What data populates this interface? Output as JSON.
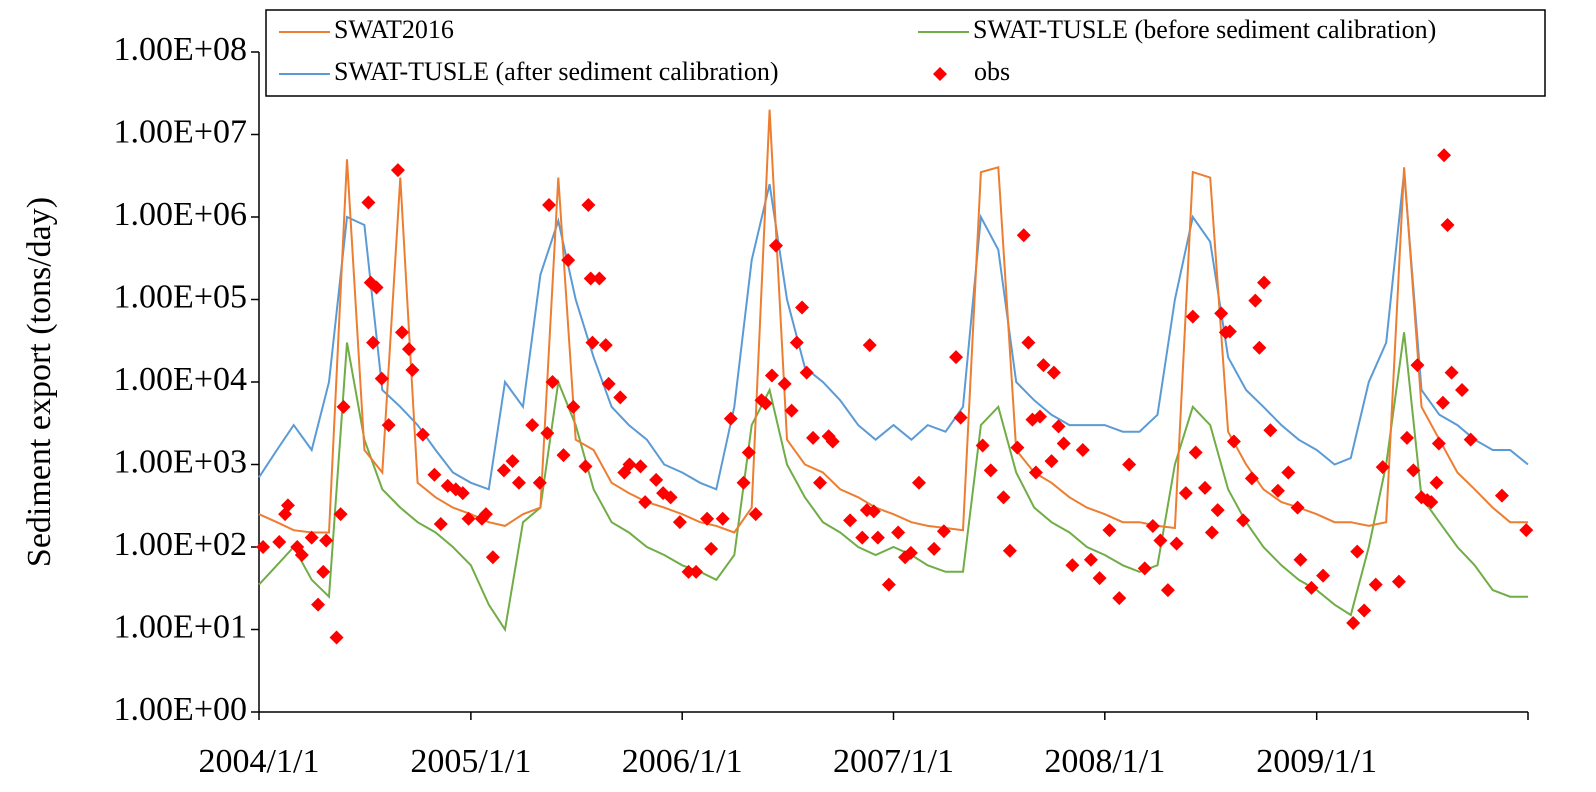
{
  "chart_data": {
    "type": "line",
    "y_label": "Sediment export (tons/day)",
    "log_y": true,
    "grid": false,
    "legend": "top",
    "x": [
      "2004/1/1",
      "2004/2/1",
      "2004/3/1",
      "2004/4/1",
      "2004/5/1",
      "2004/6/1",
      "2004/7/1",
      "2004/8/1",
      "2004/9/1",
      "2004/10/1",
      "2004/11/1",
      "2004/12/1",
      "2005/1/1",
      "2005/2/1",
      "2005/3/1",
      "2005/4/1",
      "2005/5/1",
      "2005/6/1",
      "2005/7/1",
      "2005/8/1",
      "2005/9/1",
      "2005/10/1",
      "2005/11/1",
      "2005/12/1",
      "2006/1/1",
      "2006/2/1",
      "2006/3/1",
      "2006/4/1",
      "2006/5/1",
      "2006/6/1",
      "2006/7/1",
      "2006/8/1",
      "2006/9/1",
      "2006/10/1",
      "2006/11/1",
      "2006/12/1",
      "2007/1/1",
      "2007/2/1",
      "2007/3/1",
      "2007/4/1",
      "2007/5/1",
      "2007/6/1",
      "2007/7/1",
      "2007/8/1",
      "2007/9/1",
      "2007/10/1",
      "2007/11/1",
      "2007/12/1",
      "2008/1/1",
      "2008/2/1",
      "2008/3/1",
      "2008/4/1",
      "2008/5/1",
      "2008/6/1",
      "2008/7/1",
      "2008/8/1",
      "2008/9/1",
      "2008/10/1",
      "2008/11/1",
      "2008/12/1",
      "2009/1/1",
      "2009/2/1",
      "2009/3/1",
      "2009/4/1",
      "2009/5/1",
      "2009/6/1",
      "2009/7/1",
      "2009/8/1",
      "2009/9/1",
      "2009/10/1",
      "2009/11/1",
      "2009/12/1",
      "2010/1/1"
    ],
    "xlim": [
      "2004/1/1",
      "2010/1/1"
    ],
    "xticks": [
      "2004/1/1",
      "2005/1/1",
      "2006/1/1",
      "2007/1/1",
      "2008/1/1",
      "2009/1/1"
    ],
    "ylim": [
      1,
      100000000
    ],
    "yticks": [
      {
        "value": 1,
        "label": "1.00E+00"
      },
      {
        "value": 10,
        "label": "1.00E+01"
      },
      {
        "value": 100,
        "label": "1.00E+02"
      },
      {
        "value": 1000,
        "label": "1.00E+03"
      },
      {
        "value": 10000,
        "label": "1.00E+04"
      },
      {
        "value": 100000,
        "label": "1.00E+05"
      },
      {
        "value": 1000000,
        "label": "1.00E+06"
      },
      {
        "value": 10000000,
        "label": "1.00E+07"
      },
      {
        "value": 100000000,
        "label": "1.00E+08"
      }
    ],
    "series": [
      {
        "name": "SWAT2016",
        "color": "#ed7d31",
        "style": "line",
        "values": [
          250,
          200,
          160,
          150,
          150,
          5000000,
          1500,
          800,
          3000000,
          600,
          400,
          300,
          250,
          200,
          180,
          250,
          300,
          3000000,
          2000,
          1500,
          600,
          450,
          350,
          300,
          250,
          200,
          180,
          150,
          300,
          20000000,
          2000,
          1000,
          800,
          500,
          400,
          300,
          250,
          200,
          180,
          170,
          160,
          3500000,
          4000000,
          1500,
          800,
          600,
          400,
          300,
          250,
          200,
          200,
          180,
          170,
          3500000,
          3000000,
          2500,
          1000,
          500,
          350,
          300,
          250,
          200,
          200,
          180,
          200,
          4000000,
          5000,
          2000,
          800,
          500,
          300,
          200,
          200
        ]
      },
      {
        "name": "SWAT-TUSLE (before sediment calibration)",
        "color": "#70ad47",
        "style": "line",
        "values": [
          35,
          60,
          100,
          40,
          25,
          30000,
          2000,
          500,
          300,
          200,
          150,
          100,
          60,
          20,
          10,
          200,
          300,
          10000,
          3000,
          500,
          200,
          150,
          100,
          80,
          60,
          50,
          40,
          80,
          3000,
          8000,
          1000,
          400,
          200,
          150,
          100,
          80,
          100,
          80,
          60,
          50,
          50,
          3000,
          5000,
          800,
          300,
          200,
          150,
          100,
          80,
          60,
          50,
          60,
          1000,
          5000,
          3000,
          500,
          200,
          100,
          60,
          40,
          30,
          20,
          15,
          100,
          1000,
          40000,
          400,
          200,
          100,
          60,
          30,
          25,
          25
        ]
      },
      {
        "name": "SWAT-TUSLE (after sediment calibration)",
        "color": "#5b9bd5",
        "style": "line",
        "values": [
          700,
          1500,
          3000,
          1500,
          10000,
          1000000,
          800000,
          8000,
          5000,
          3000,
          1500,
          800,
          600,
          500,
          10000,
          5000,
          200000,
          900000,
          100000,
          20000,
          5000,
          3000,
          2000,
          1000,
          800,
          600,
          500,
          5000,
          300000,
          2500000,
          100000,
          15000,
          10000,
          6000,
          3000,
          2000,
          3000,
          2000,
          3000,
          2500,
          5000,
          1000000,
          400000,
          10000,
          6000,
          4000,
          3000,
          3000,
          3000,
          2500,
          2500,
          4000,
          100000,
          1000000,
          500000,
          20000,
          8000,
          5000,
          3000,
          2000,
          1500,
          1000,
          1200,
          10000,
          30000,
          3500000,
          8000,
          4000,
          3000,
          2000,
          1500,
          1500,
          1000
        ]
      },
      {
        "name": "obs",
        "color": "#ff0000",
        "style": "marker",
        "x": [
          "2004/1/8",
          "2004/2/5",
          "2004/2/15",
          "2004/2/20",
          "2004/3/7",
          "2004/3/15",
          "2004/4/1",
          "2004/4/12",
          "2004/4/21",
          "2004/4/26",
          "2004/5/14",
          "2004/5/21",
          "2004/5/26",
          "2004/7/8",
          "2004/7/12",
          "2004/7/16",
          "2004/7/22",
          "2004/7/31",
          "2004/8/12",
          "2004/8/28",
          "2004/9/4",
          "2004/9/16",
          "2004/9/22",
          "2004/10/10",
          "2004/10/30",
          "2004/11/10",
          "2004/11/22",
          "2004/12/6",
          "2004/12/18",
          "2004/12/28",
          "2005/1/20",
          "2005/1/27",
          "2005/2/8",
          "2005/2/27",
          "2005/3/14",
          "2005/3/25",
          "2005/4/17",
          "2005/4/30",
          "2005/5/13",
          "2005/5/16",
          "2005/5/22",
          "2005/6/10",
          "2005/6/18",
          "2005/6/27",
          "2005/7/18",
          "2005/7/23",
          "2005/7/27",
          "2005/7/30",
          "2005/8/11",
          "2005/8/22",
          "2005/8/27",
          "2005/9/16",
          "2005/9/23",
          "2005/10/2",
          "2005/10/21",
          "2005/10/29",
          "2005/11/17",
          "2005/11/29",
          "2005/12/12",
          "2005/12/28",
          "2006/1/12",
          "2006/1/25",
          "2006/2/13",
          "2006/2/20",
          "2006/3/12",
          "2006/3/26",
          "2006/4/17",
          "2006/4/26",
          "2006/5/8",
          "2006/5/18",
          "2006/5/25",
          "2006/6/5",
          "2006/6/12",
          "2006/6/27",
          "2006/7/9",
          "2006/7/18",
          "2006/7/27",
          "2006/8/4",
          "2006/8/15",
          "2006/8/27",
          "2006/9/11",
          "2006/9/18",
          "2006/10/18",
          "2006/11/8",
          "2006/11/16",
          "2006/11/21",
          "2006/11/28",
          "2006/12/5",
          "2006/12/24",
          "2007/1/9",
          "2007/1/21",
          "2007/1/31",
          "2007/2/14",
          "2007/3/12",
          "2007/3/29",
          "2007/4/19",
          "2007/4/27",
          "2007/6/4",
          "2007/6/18",
          "2007/7/10",
          "2007/7/21",
          "2007/8/3",
          "2007/8/14",
          "2007/8/22",
          "2007/8/29",
          "2007/9/4",
          "2007/9/11",
          "2007/9/17",
          "2007/10/1",
          "2007/10/5",
          "2007/10/13",
          "2007/10/22",
          "2007/11/6",
          "2007/11/24",
          "2007/12/8",
          "2007/12/23",
          "2008/1/9",
          "2008/1/26",
          "2008/2/12",
          "2008/3/10",
          "2008/3/24",
          "2008/4/6",
          "2008/4/19",
          "2008/5/4",
          "2008/5/20",
          "2008/6/1",
          "2008/6/6",
          "2008/6/22",
          "2008/7/4",
          "2008/7/14",
          "2008/7/20",
          "2008/7/28",
          "2008/8/4",
          "2008/8/11",
          "2008/8/27",
          "2008/9/11",
          "2008/9/17",
          "2008/9/24",
          "2008/10/2",
          "2008/10/13",
          "2008/10/26",
          "2008/11/13",
          "2008/11/29",
          "2008/12/4",
          "2008/12/23",
          "2009/1/12",
          "2009/3/5",
          "2009/3/12",
          "2009/3/24",
          "2009/4/13",
          "2009/4/25",
          "2009/5/23",
          "2009/6/6",
          "2009/6/17",
          "2009/6/24",
          "2009/7/1",
          "2009/7/11",
          "2009/7/18",
          "2009/7/27",
          "2009/7/31",
          "2009/8/7",
          "2009/8/9",
          "2009/8/15",
          "2009/8/22",
          "2009/9/9",
          "2009/9/24",
          "2009/11/17",
          "2009/12/29"
        ],
        "values": [
          100,
          115,
          250,
          320,
          100,
          80,
          130,
          20,
          50,
          120,
          8,
          250,
          5000,
          1500000,
          160000,
          30000,
          140000,
          11000,
          3000,
          3700000,
          40000,
          25000,
          14000,
          2300,
          750,
          190,
          550,
          500,
          450,
          220,
          220,
          250,
          75,
          850,
          1100,
          600,
          3000,
          600,
          2400,
          1400000,
          10000,
          1300,
          300000,
          5000,
          950,
          1400000,
          180000,
          30000,
          180000,
          28000,
          9500,
          6500,
          800,
          1000,
          950,
          350,
          650,
          450,
          400,
          200,
          50,
          50,
          220,
          95,
          220,
          3600,
          600,
          1400,
          250,
          6000,
          5500,
          12000,
          450000,
          9500,
          4500,
          30000,
          80000,
          13000,
          2100,
          600,
          2200,
          1900,
          210,
          130,
          280,
          28000,
          270,
          130,
          35,
          150,
          75,
          85,
          600,
          95,
          155,
          20000,
          3700,
          1700,
          850,
          400,
          90,
          1600,
          600000,
          30000,
          3500,
          800,
          3800,
          16000,
          1100,
          13000,
          2900,
          1800,
          60,
          1500,
          70,
          42,
          160,
          24,
          1000,
          55,
          180,
          120,
          30,
          110,
          450,
          62000,
          1400,
          520,
          150,
          280,
          68000,
          40000,
          41000,
          1900,
          210,
          680,
          97000,
          26000,
          160000,
          2600,
          480,
          800,
          300,
          70,
          32,
          45,
          12,
          88,
          17,
          35,
          930,
          38,
          2100,
          850,
          16000,
          400,
          370,
          350,
          600,
          1800,
          5600,
          5600000,
          800000,
          13000,
          8000,
          2000,
          420,
          160
        ]
      }
    ]
  }
}
